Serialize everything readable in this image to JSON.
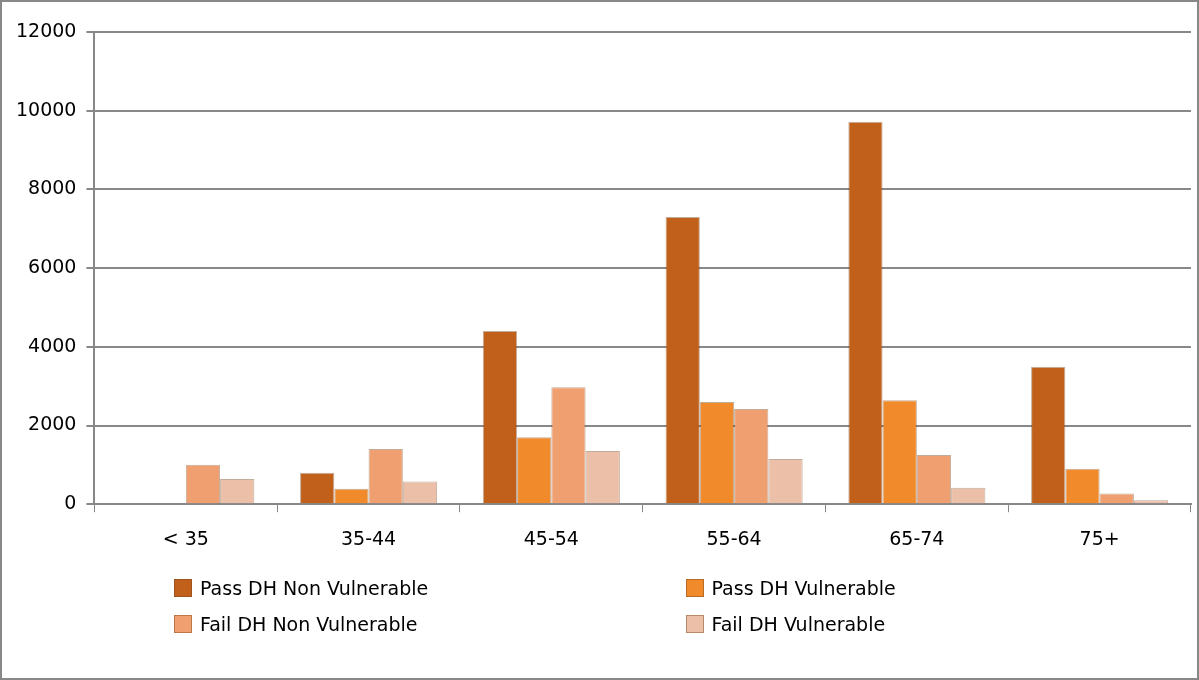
{
  "chart_data": {
    "type": "bar",
    "categories": [
      "< 35",
      "35-44",
      "45-54",
      "55-64",
      "65-74",
      "75+"
    ],
    "series": [
      {
        "name": "Pass DH Non Vulnerable",
        "color": "#c0601a",
        "values": [
          0,
          800,
          4400,
          7300,
          9720,
          3490
        ]
      },
      {
        "name": "Pass DH Vulnerable",
        "color": "#f08a2a",
        "values": [
          0,
          390,
          1700,
          2600,
          2640,
          900
        ]
      },
      {
        "name": "Fail DH Non Vulnerable",
        "color": "#f0a070",
        "values": [
          1000,
          1400,
          2970,
          2420,
          1250,
          270
        ]
      },
      {
        "name": "Fail DH Vulnerable",
        "color": "#ecc0a8",
        "values": [
          640,
          580,
          1350,
          1150,
          420,
          100
        ]
      }
    ],
    "ylim": [
      0,
      12000
    ],
    "yticks": [
      0,
      2000,
      4000,
      6000,
      8000,
      10000,
      12000
    ],
    "grid": "y",
    "legend": "bottom"
  }
}
